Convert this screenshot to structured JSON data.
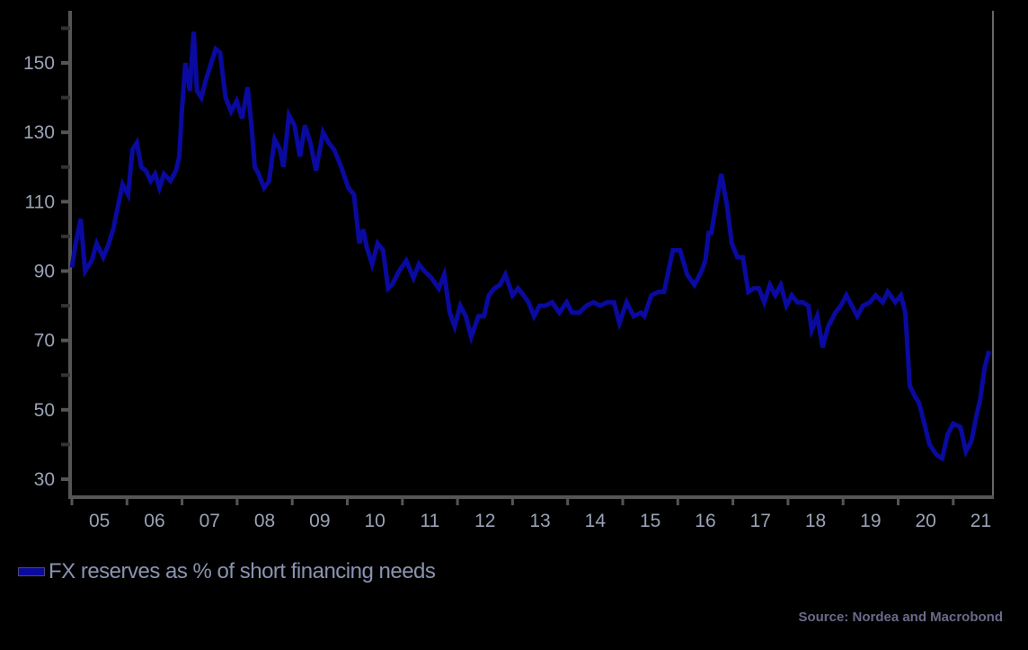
{
  "chart_data": {
    "type": "line",
    "title": "",
    "xlabel": "",
    "ylabel": "",
    "ylim": [
      30,
      160
    ],
    "yticks": [
      150,
      130,
      110,
      90,
      70,
      50,
      30
    ],
    "yticks_minor": [
      160,
      140,
      120,
      100,
      80,
      60,
      40
    ],
    "x_categories": [
      "05",
      "06",
      "07",
      "08",
      "09",
      "10",
      "11",
      "12",
      "13",
      "14",
      "15",
      "16",
      "17",
      "18",
      "19",
      "20",
      "21"
    ],
    "xlim": [
      2005.0,
      2021.7
    ],
    "grid": false,
    "legend_position": "bottom-left",
    "series": [
      {
        "name": "FX reserves as % of short financing needs",
        "color": "#0a0aa0",
        "x": [
          2005.0,
          2005.07,
          2005.16,
          2005.24,
          2005.36,
          2005.45,
          2005.57,
          2005.65,
          2005.75,
          2005.84,
          2005.92,
          2006.02,
          2006.1,
          2006.18,
          2006.26,
          2006.34,
          2006.43,
          2006.51,
          2006.59,
          2006.67,
          2006.79,
          2006.89,
          2006.95,
          2007.0,
          2007.06,
          2007.14,
          2007.21,
          2007.27,
          2007.35,
          2007.43,
          2007.53,
          2007.61,
          2007.69,
          2007.79,
          2007.89,
          2007.99,
          2008.09,
          2008.19,
          2008.26,
          2008.32,
          2008.39,
          2008.49,
          2008.58,
          2008.68,
          2008.78,
          2008.84,
          2008.94,
          2009.04,
          2009.14,
          2009.23,
          2009.33,
          2009.43,
          2009.56,
          2009.66,
          2009.76,
          2009.89,
          2010.02,
          2010.12,
          2010.22,
          2010.29,
          2010.35,
          2010.45,
          2010.55,
          2010.65,
          2010.74,
          2010.81,
          2010.94,
          2011.07,
          2011.2,
          2011.3,
          2011.4,
          2011.53,
          2011.66,
          2011.76,
          2011.86,
          2011.95,
          2012.05,
          2012.15,
          2012.25,
          2012.38,
          2012.48,
          2012.57,
          2012.67,
          2012.77,
          2012.87,
          2013.0,
          2013.1,
          2013.2,
          2013.29,
          2013.39,
          2013.49,
          2013.59,
          2013.72,
          2013.85,
          2013.98,
          2014.08,
          2014.21,
          2014.34,
          2014.47,
          2014.59,
          2014.72,
          2014.84,
          2014.94,
          2015.07,
          2015.2,
          2015.33,
          2015.39,
          2015.52,
          2015.65,
          2015.75,
          2015.91,
          2016.04,
          2016.17,
          2016.3,
          2016.43,
          2016.5,
          2016.56,
          2016.61,
          2016.69,
          2016.79,
          2016.89,
          2016.98,
          2017.08,
          2017.18,
          2017.28,
          2017.38,
          2017.47,
          2017.57,
          2017.67,
          2017.77,
          2017.87,
          2017.97,
          2018.07,
          2018.17,
          2018.27,
          2018.37,
          2018.43,
          2018.53,
          2018.63,
          2018.73,
          2018.86,
          2018.96,
          2019.06,
          2019.16,
          2019.26,
          2019.36,
          2019.49,
          2019.59,
          2019.72,
          2019.81,
          2019.95,
          2020.05,
          2020.13,
          2020.21,
          2020.3,
          2020.38,
          2020.46,
          2020.57,
          2020.7,
          2020.8,
          2020.9,
          2021.0,
          2021.13,
          2021.23,
          2021.33,
          2021.43,
          2021.49,
          2021.57,
          2021.65
        ],
        "values": [
          91,
          98,
          105,
          90,
          93,
          98,
          94,
          97,
          102,
          109,
          115,
          112,
          125,
          127,
          120,
          119,
          116,
          118,
          114,
          118,
          116,
          119,
          123,
          137,
          150,
          142,
          159,
          142,
          140,
          145,
          150,
          154,
          153,
          140,
          136,
          139,
          134,
          143,
          132,
          120,
          118,
          114,
          116,
          128,
          125,
          120,
          135,
          132,
          123,
          132,
          127,
          119,
          130,
          127,
          125,
          120,
          114,
          112,
          98,
          102,
          97,
          92,
          98,
          96,
          85,
          86,
          90,
          93,
          88,
          92,
          90,
          88,
          85,
          89,
          78,
          74,
          80,
          77,
          71,
          77,
          77,
          83,
          85,
          86,
          89,
          83,
          85,
          83,
          81,
          77,
          80,
          80,
          81,
          78,
          81,
          78,
          78,
          80,
          81,
          80,
          81,
          81,
          75,
          81,
          77,
          78,
          77,
          83,
          84,
          84,
          96,
          96,
          89,
          86,
          90,
          93,
          101,
          101,
          109,
          118,
          109,
          98,
          94,
          94,
          84,
          85,
          85,
          81,
          86,
          83,
          86,
          80,
          83,
          81,
          81,
          80,
          73,
          77,
          68,
          74,
          78,
          80,
          83,
          80,
          77,
          80,
          81,
          83,
          81,
          84,
          81,
          83,
          78,
          57,
          54,
          52,
          47,
          40,
          37,
          36,
          43,
          46,
          45,
          38,
          41,
          49,
          53,
          62,
          67
        ]
      }
    ],
    "annotations": [
      "Source: Nordea and Macrobond"
    ]
  },
  "legend": {
    "label": "FX reserves as % of short financing needs",
    "color": "#0a0aa0"
  },
  "source": "Source: Nordea and Macrobond"
}
